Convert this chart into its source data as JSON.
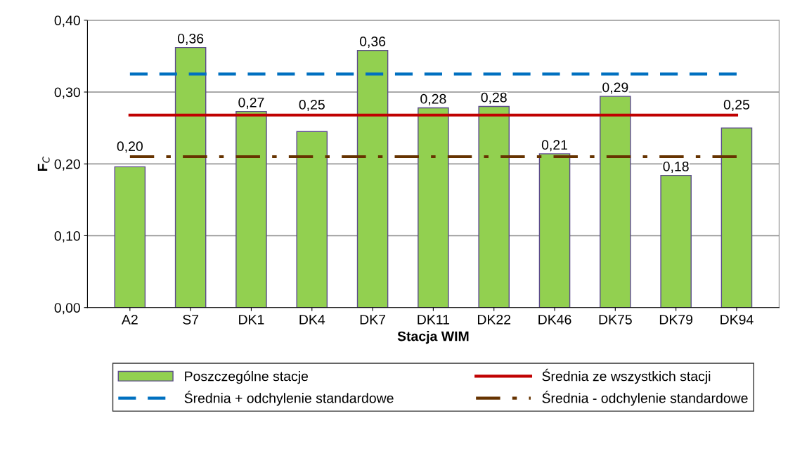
{
  "chart_data": {
    "type": "bar",
    "xlabel": "Stacja WIM",
    "ylabel": "F$_{C}$",
    "categories": [
      "A2",
      "S7",
      "DK1",
      "DK4",
      "DK7",
      "DK11",
      "DK22",
      "DK46",
      "DK75",
      "DK79",
      "DK94"
    ],
    "ylim": [
      0,
      0.4
    ],
    "yticks": [
      {
        "value": 0,
        "label": "0,00"
      },
      {
        "value": 0.1,
        "label": "0,10"
      },
      {
        "value": 0.2,
        "label": "0,20"
      },
      {
        "value": 0.3,
        "label": "0,30"
      },
      {
        "value": 0.4,
        "label": "0,40"
      }
    ],
    "grid": "y",
    "legend": "bottom",
    "series": [
      {
        "name": "Poszczególne stacje",
        "color": "#92d050",
        "values": [
          0.196,
          0.362,
          0.273,
          0.245,
          0.358,
          0.278,
          0.28,
          0.214,
          0.294,
          0.184,
          0.25
        ],
        "value_labels": [
          "0,20",
          "0,36",
          "0,27",
          "0,25",
          "0,36",
          "0,28",
          "0,28",
          "0,21",
          "0,29",
          "0,18",
          "0,25"
        ]
      },
      {
        "name": "Średnia + odchylenie standardowe",
        "type": "line",
        "color": "#0070c0",
        "line_style": "dashed",
        "values": [
          0.325,
          0.325,
          0.325,
          0.325,
          0.325,
          0.325,
          0.325,
          0.325,
          0.325,
          0.325,
          0.325
        ]
      },
      {
        "name": "Średnia ze wszystkich stacji",
        "type": "line",
        "color": "#c00000",
        "line_style": "solid",
        "values": [
          0.268,
          0.268,
          0.268,
          0.268,
          0.268,
          0.268,
          0.268,
          0.268,
          0.268,
          0.268,
          0.268
        ]
      },
      {
        "name": "Średnia - odchylenie standardowe",
        "type": "line",
        "color": "#663300",
        "line_style": "dashdot",
        "values": [
          0.21,
          0.21,
          0.21,
          0.21,
          0.21,
          0.21,
          0.21,
          0.21,
          0.21,
          0.21,
          0.21
        ]
      }
    ]
  }
}
